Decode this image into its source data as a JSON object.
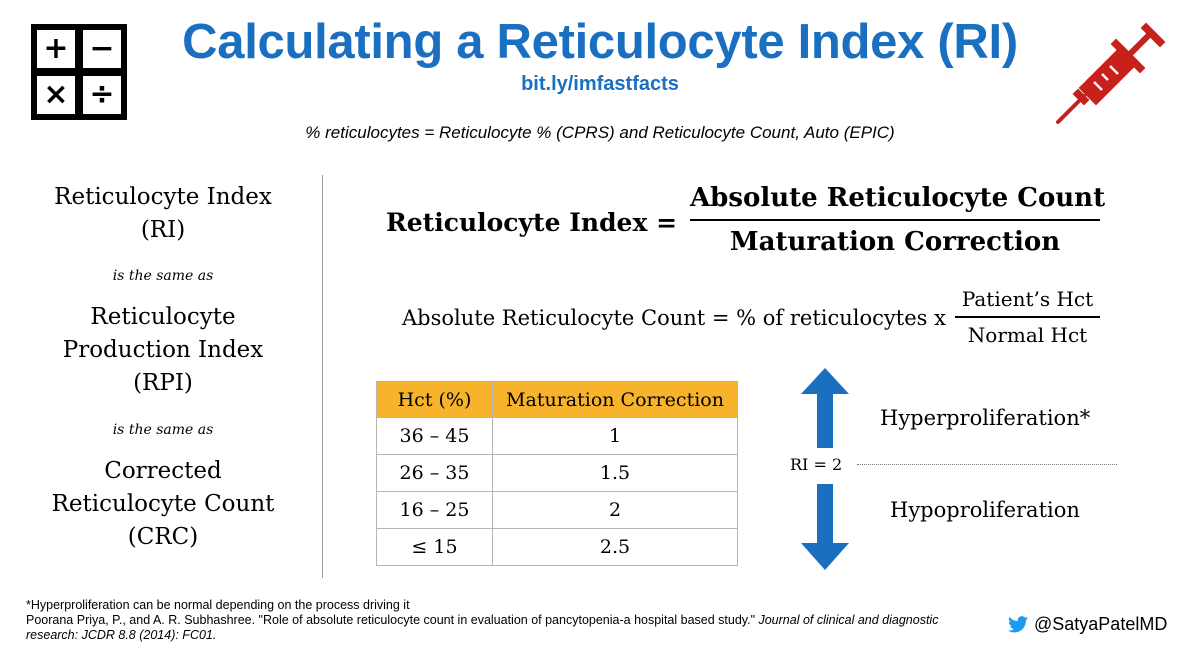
{
  "header": {
    "title": "Calculating a Reticulocyte Index (RI)",
    "link": "bit.ly/imfastfacts",
    "subtitle": "% reticulocytes = Reticulocyte % (CPRS) and Reticulocyte Count, Auto (EPIC)"
  },
  "icons": {
    "calculator": "calculator-icon",
    "syringe": "syringe-icon",
    "twitter": "twitter-bird-icon"
  },
  "calculator_symbols": [
    "+",
    "−",
    "×",
    "÷"
  ],
  "synonyms": {
    "item1_line1": "Reticulocyte Index",
    "item1_line2": "(RI)",
    "same_as_1": "is the same as",
    "item2_line1": "Reticulocyte",
    "item2_line2": "Production Index",
    "item2_line3": "(RPI)",
    "same_as_2": "is the same as",
    "item3_line1": "Corrected",
    "item3_line2": "Reticulocyte Count",
    "item3_line3": "(CRC)"
  },
  "formula_ri": {
    "lhs": "Reticulocyte Index =",
    "numerator": "Absolute Reticulocyte Count",
    "denominator": "Maturation Correction"
  },
  "formula_arc": {
    "lhs": "Absolute Reticulocyte Count = % of reticulocytes x",
    "numerator": "Patient’s Hct",
    "denominator": "Normal Hct"
  },
  "table": {
    "headers": [
      "Hct (%)",
      "Maturation Correction"
    ],
    "rows": [
      [
        "36 – 45",
        "1"
      ],
      [
        "26 – 35",
        "1.5"
      ],
      [
        "16 – 25",
        "2"
      ],
      [
        "≤ 15",
        "2.5"
      ]
    ]
  },
  "interpretation": {
    "threshold": "RI = 2",
    "above": "Hyperproliferation*",
    "below": "Hypoproliferation"
  },
  "footer": {
    "footnote": "*Hyperproliferation can be normal depending on the process driving it",
    "citation_plain": "Poorana Priya, P., and A. R. Subhashree. \"Role of absolute reticulocyte count in evaluation of pancytopenia-a hospital based study.\" ",
    "citation_italic": "Journal of clinical and diagnostic research: JCDR 8.8 (2014): FC01.",
    "handle": "@SatyaPatelMD"
  },
  "colors": {
    "title_blue": "#1a6fc1",
    "arrow_blue": "#1a6fc1",
    "header_orange": "#f7b32b",
    "syringe_red": "#c8201a",
    "twitter_blue": "#1d9bf0"
  }
}
